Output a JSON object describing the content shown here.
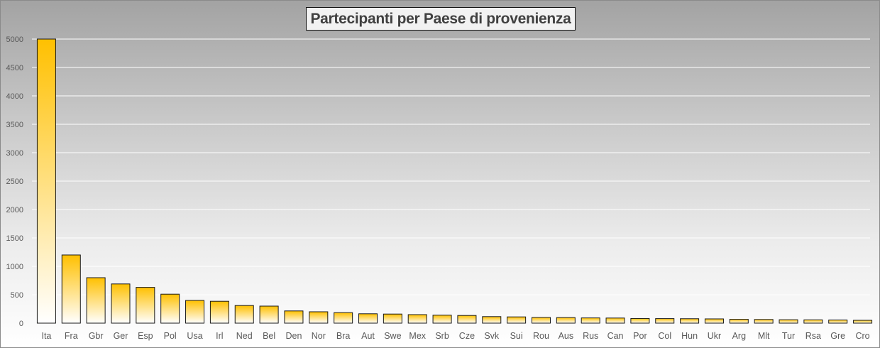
{
  "chart_data": {
    "type": "bar",
    "title": "Partecipanti per Paese di provenienza",
    "xlabel": "",
    "ylabel": "",
    "ylim": [
      0,
      5000
    ],
    "yticks": [
      0,
      500,
      1000,
      1500,
      2000,
      2500,
      3000,
      3500,
      4000,
      4500,
      5000
    ],
    "grid": true,
    "legend": "none",
    "categories": [
      "Ita",
      "Fra",
      "Gbr",
      "Ger",
      "Esp",
      "Pol",
      "Usa",
      "Irl",
      "Ned",
      "Bel",
      "Den",
      "Nor",
      "Bra",
      "Aut",
      "Swe",
      "Mex",
      "Srb",
      "Cze",
      "Svk",
      "Sui",
      "Rou",
      "Aus",
      "Rus",
      "Can",
      "Por",
      "Col",
      "Hun",
      "Ukr",
      "Arg",
      "Mlt",
      "Tur",
      "Rsa",
      "Gre",
      "Cro"
    ],
    "values": [
      5000,
      1200,
      800,
      690,
      630,
      510,
      400,
      385,
      310,
      300,
      215,
      200,
      185,
      165,
      160,
      150,
      140,
      135,
      115,
      110,
      100,
      98,
      92,
      90,
      82,
      80,
      78,
      75,
      68,
      65,
      60,
      58,
      55,
      50
    ],
    "colors": {
      "bar_top": "#ffc000",
      "bar_bottom": "#ffffff",
      "bar_stroke": "#1a1a1a",
      "grid": "#ffffff"
    }
  }
}
